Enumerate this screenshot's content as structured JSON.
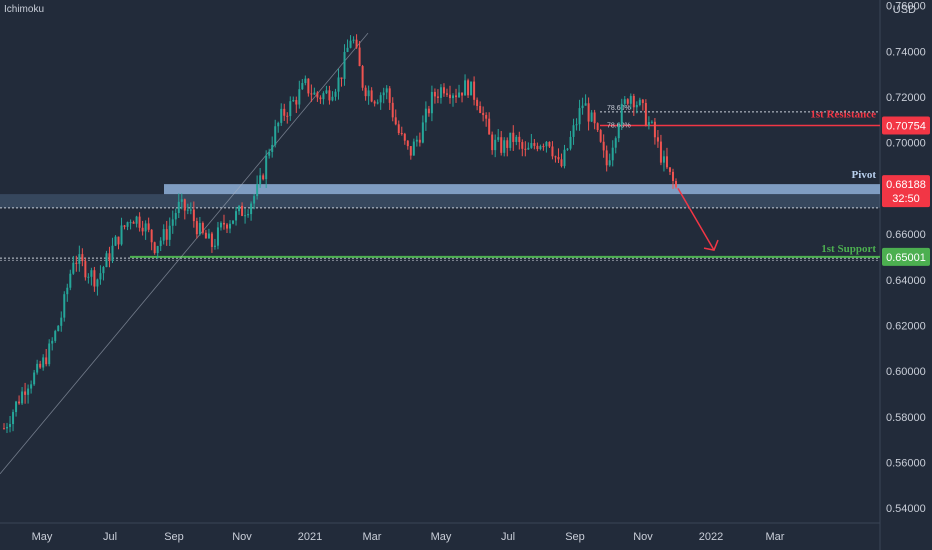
{
  "indicator_label": "Ichimoku",
  "chart_data": {
    "type": "candlestick",
    "currency": "USD",
    "x_tick_labels": [
      "May",
      "Jul",
      "Sep",
      "Nov",
      "2021",
      "Mar",
      "May",
      "Jul",
      "Sep",
      "Nov",
      "2022",
      "Mar"
    ],
    "y_tick_labels": [
      "0.76000",
      "0.74000",
      "0.72000",
      "0.70000",
      "0.68000",
      "0.66000",
      "0.64000",
      "0.62000",
      "0.60000",
      "0.58000",
      "0.56000",
      "0.54000"
    ],
    "y_ticks": [
      0.76,
      0.74,
      0.72,
      0.7,
      0.68,
      0.66,
      0.64,
      0.62,
      0.6,
      0.58,
      0.56,
      0.54
    ],
    "ylim": [
      0.5335,
      0.7625
    ],
    "series": [
      {
        "values": [
          0.575,
          0.585,
          0.595,
          0.6,
          0.61,
          0.625,
          0.65,
          0.645,
          0.64,
          0.65,
          0.66,
          0.668,
          0.665,
          0.655,
          0.66,
          0.672,
          0.67,
          0.66,
          0.655,
          0.665,
          0.668,
          0.672,
          0.68,
          0.7,
          0.712,
          0.718,
          0.725,
          0.72,
          0.722,
          0.728,
          0.748,
          0.725,
          0.72,
          0.723,
          0.705,
          0.695,
          0.705,
          0.72,
          0.725,
          0.722,
          0.725,
          0.718,
          0.7,
          0.698,
          0.702,
          0.695,
          0.7,
          0.702,
          0.688,
          0.703,
          0.718,
          0.706,
          0.69,
          0.71,
          0.722,
          0.715,
          0.705,
          0.69,
          0.68
        ]
      }
    ],
    "levels": [
      {
        "name": "1st Resistance",
        "value": 0.70754,
        "label": "0.70754",
        "color": "#f23645"
      },
      {
        "name": "Pivot",
        "value": 0.68188,
        "label": "0.68188",
        "color": "#7a9cc6"
      },
      {
        "name": "1st Support",
        "value": 0.65001,
        "label": "0.65001",
        "color": "#4caf50"
      }
    ],
    "countdown": "32:50",
    "fib_labels": [
      "78.60%",
      "78.60%"
    ],
    "forecast_target": 0.653,
    "colors": {
      "up": "#26a69a",
      "down": "#ef5350",
      "background": "#222b3a",
      "axis_text": "#c9ced8"
    }
  }
}
